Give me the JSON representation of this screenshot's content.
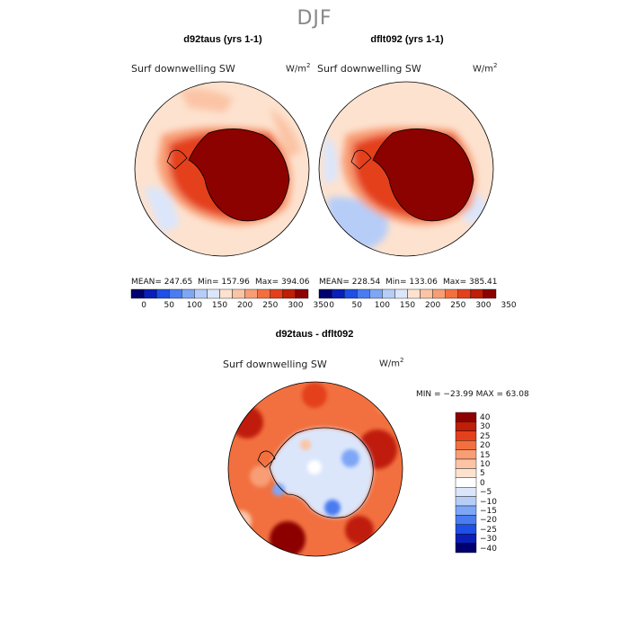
{
  "title": "DJF",
  "panels": [
    {
      "title": "d92taus (yrs 1-1)",
      "variable": "Surf downwelling SW",
      "units": "W/m",
      "units_exp": "2",
      "mean_text": "MEAN= 247.65",
      "min_text": "Min= 157.96",
      "max_text": "Max= 394.06"
    },
    {
      "title": "dflt092 (yrs 1-1)",
      "variable": "Surf downwelling SW",
      "units": "W/m",
      "units_exp": "2",
      "mean_text": "MEAN= 228.54",
      "min_text": "Min= 133.06",
      "max_text": "Max= 385.41"
    },
    {
      "title": "d92taus - dflt092",
      "variable": "Surf downwelling SW",
      "units": "W/m",
      "units_exp": "2",
      "minmax_text": "MIN = −23.99 MAX =  63.08"
    }
  ],
  "chart_data": [
    {
      "type": "heatmap",
      "title": "d92taus (yrs 1-1)",
      "subtitle": "Surf downwelling SW",
      "units": "W/m2",
      "projection": "south polar stereographic",
      "region": "Antarctica",
      "stats": {
        "mean": 247.65,
        "min": 157.96,
        "max": 394.06
      },
      "colorbar": {
        "ticks": [
          0,
          50,
          100,
          150,
          200,
          250,
          300,
          350
        ]
      }
    },
    {
      "type": "heatmap",
      "title": "dflt092 (yrs 1-1)",
      "subtitle": "Surf downwelling SW",
      "units": "W/m2",
      "projection": "south polar stereographic",
      "region": "Antarctica",
      "stats": {
        "mean": 228.54,
        "min": 133.06,
        "max": 385.41
      },
      "colorbar": {
        "ticks": [
          0,
          50,
          100,
          150,
          200,
          250,
          300,
          350
        ]
      }
    },
    {
      "type": "heatmap",
      "title": "d92taus - dflt092",
      "subtitle": "Surf downwelling SW",
      "units": "W/m2",
      "projection": "south polar stereographic",
      "region": "Antarctica",
      "stats": {
        "min": -23.99,
        "max": 63.08
      },
      "colorbar": {
        "levels": [
          40,
          30,
          25,
          20,
          15,
          10,
          5,
          0,
          -5,
          -10,
          -15,
          -20,
          -25,
          -30,
          -40
        ]
      }
    }
  ],
  "colors": {
    "abs_scale": [
      "#00006e",
      "#0a1fb8",
      "#1e4fe6",
      "#4a7cf0",
      "#7ea6f6",
      "#b6cdf8",
      "#dbe6fb",
      "#fde2cf",
      "#fbc4a5",
      "#f89d74",
      "#f2703f",
      "#e4401c",
      "#bf1e07",
      "#8c0200"
    ],
    "diff_scale": [
      "#8c0200",
      "#bf1e07",
      "#e4401c",
      "#f2703f",
      "#f89d74",
      "#fbc4a5",
      "#fde2cf",
      "#ffffff",
      "#dbe6fb",
      "#b6cdf8",
      "#7ea6f6",
      "#4a7cf0",
      "#1e4fe6",
      "#0a1fb8",
      "#00006e"
    ]
  }
}
